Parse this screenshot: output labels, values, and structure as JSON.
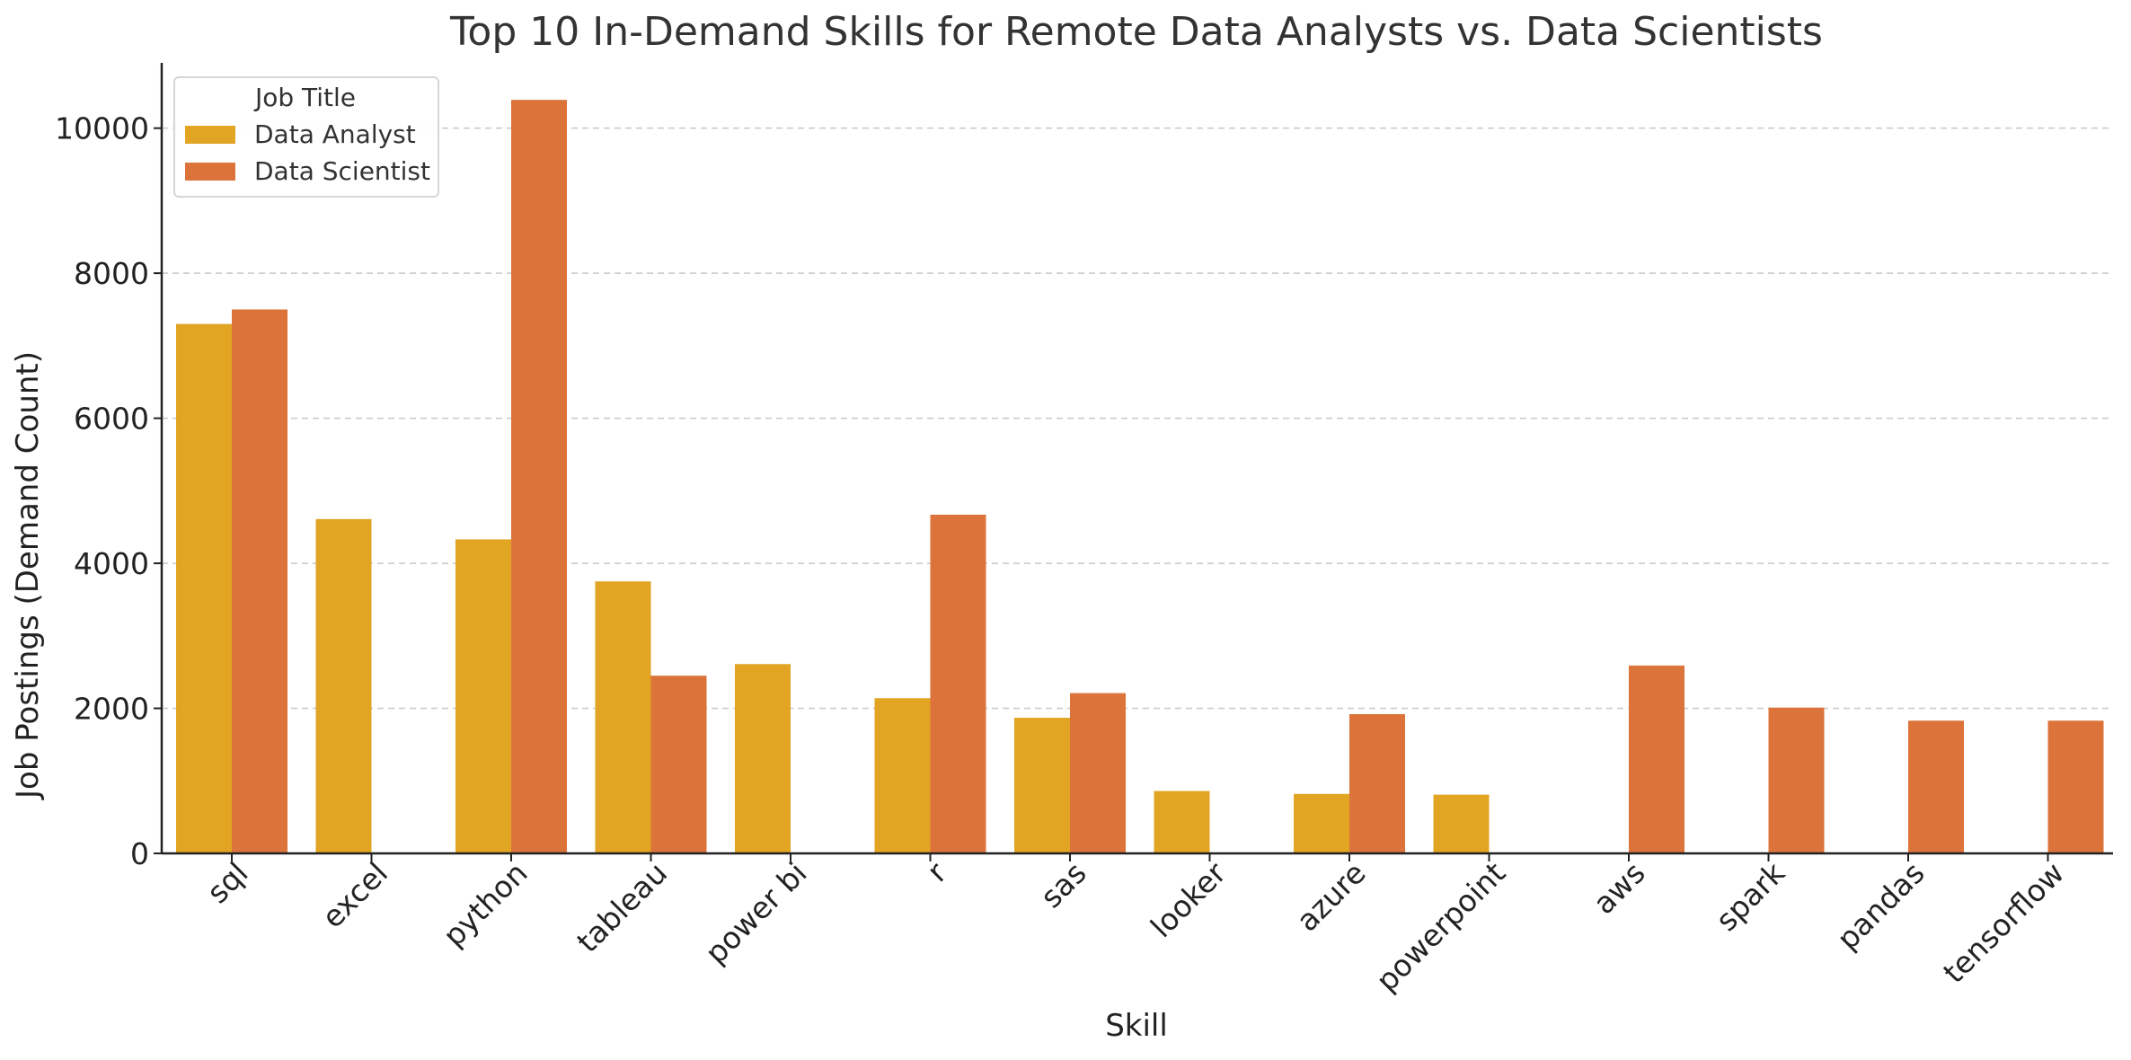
{
  "chart_data": {
    "type": "bar",
    "title": "Top 10 In-Demand Skills for Remote Data Analysts vs. Data Scientists",
    "xlabel": "Skill",
    "ylabel": "Job Postings (Demand Count)",
    "ylim": [
      0,
      10900
    ],
    "yticks": [
      0,
      2000,
      4000,
      6000,
      8000,
      10000
    ],
    "grid": "y",
    "legend": {
      "title": "Job Title",
      "placement": "top-left"
    },
    "categories": [
      "sql",
      "excel",
      "python",
      "tableau",
      "power bi",
      "r",
      "sas",
      "looker",
      "azure",
      "powerpoint",
      "aws",
      "spark",
      "pandas",
      "tensorflow"
    ],
    "series": [
      {
        "name": "Data Analyst",
        "color": "#E1A423",
        "values": [
          7300,
          4610,
          4330,
          3750,
          2610,
          2140,
          1870,
          860,
          820,
          810,
          null,
          null,
          null,
          null
        ]
      },
      {
        "name": "Data Scientist",
        "color": "#DC733A",
        "values": [
          7500,
          null,
          10390,
          2450,
          null,
          4670,
          2210,
          null,
          1920,
          null,
          2590,
          2010,
          1830,
          1830
        ]
      }
    ]
  }
}
